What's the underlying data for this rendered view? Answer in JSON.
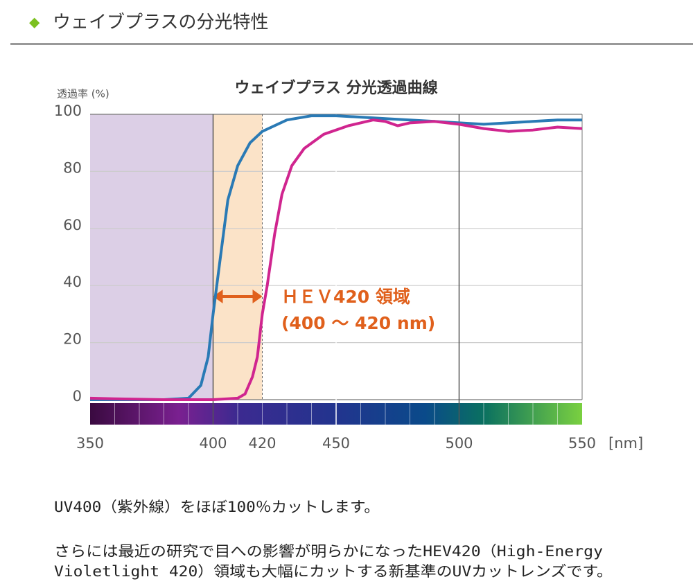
{
  "header": {
    "title": "ウェイブプラスの分光特性"
  },
  "chart_data": {
    "type": "line",
    "title": "ウェイブプラス 分光透過曲線",
    "y_label": "透過率 (%)",
    "x_unit": "[nm]",
    "annotations": [
      "ＨＥＶ420 領域",
      "(400 〜 420 nm)"
    ],
    "xlim": [
      350,
      550
    ],
    "xticks": [
      350,
      400,
      420,
      450,
      500,
      550
    ],
    "xtick_colors": [
      "#555555",
      "#6a2c8c",
      "#e0601c",
      "#555555",
      "#555555",
      "#555555"
    ],
    "ylim": [
      0,
      100
    ],
    "yticks": [
      0,
      20,
      40,
      60,
      80,
      100
    ],
    "grid": true,
    "series": [
      {
        "color": "#2a7ab5",
        "x": [
          350,
          380,
          390,
          395,
          398,
          400,
          403,
          406,
          410,
          415,
          420,
          430,
          440,
          450,
          460,
          470,
          480,
          490,
          500,
          510,
          520,
          530,
          540,
          550
        ],
        "values": [
          0,
          0,
          0.5,
          5,
          15,
          30,
          50,
          70,
          82,
          90,
          94,
          98,
          99.5,
          99.5,
          99,
          98.5,
          98,
          97.5,
          97,
          96.5,
          97,
          97.5,
          98,
          98
        ]
      },
      {
        "color": "#d0258f",
        "x": [
          350,
          360,
          380,
          400,
          410,
          413,
          416,
          418,
          420,
          422,
          425,
          428,
          432,
          437,
          445,
          455,
          465,
          470,
          475,
          480,
          490,
          500,
          510,
          520,
          530,
          540,
          550
        ],
        "values": [
          0.5,
          0.3,
          0,
          0,
          0.5,
          2,
          8,
          15,
          30,
          40,
          58,
          72,
          82,
          88,
          93,
          96,
          98,
          97.5,
          96,
          97,
          97.5,
          96.5,
          95,
          94,
          94.5,
          95.5,
          95
        ]
      }
    ]
  },
  "body": {
    "lines": [
      "UV400（紫外線）をほぼ100％カットします。",
      "さらには最近の研究で目への影響が明らかになったHEV420（High-Energy",
      "Violetlight 420）領域も大幅にカットする新基準のUVカットレンズです。"
    ]
  }
}
